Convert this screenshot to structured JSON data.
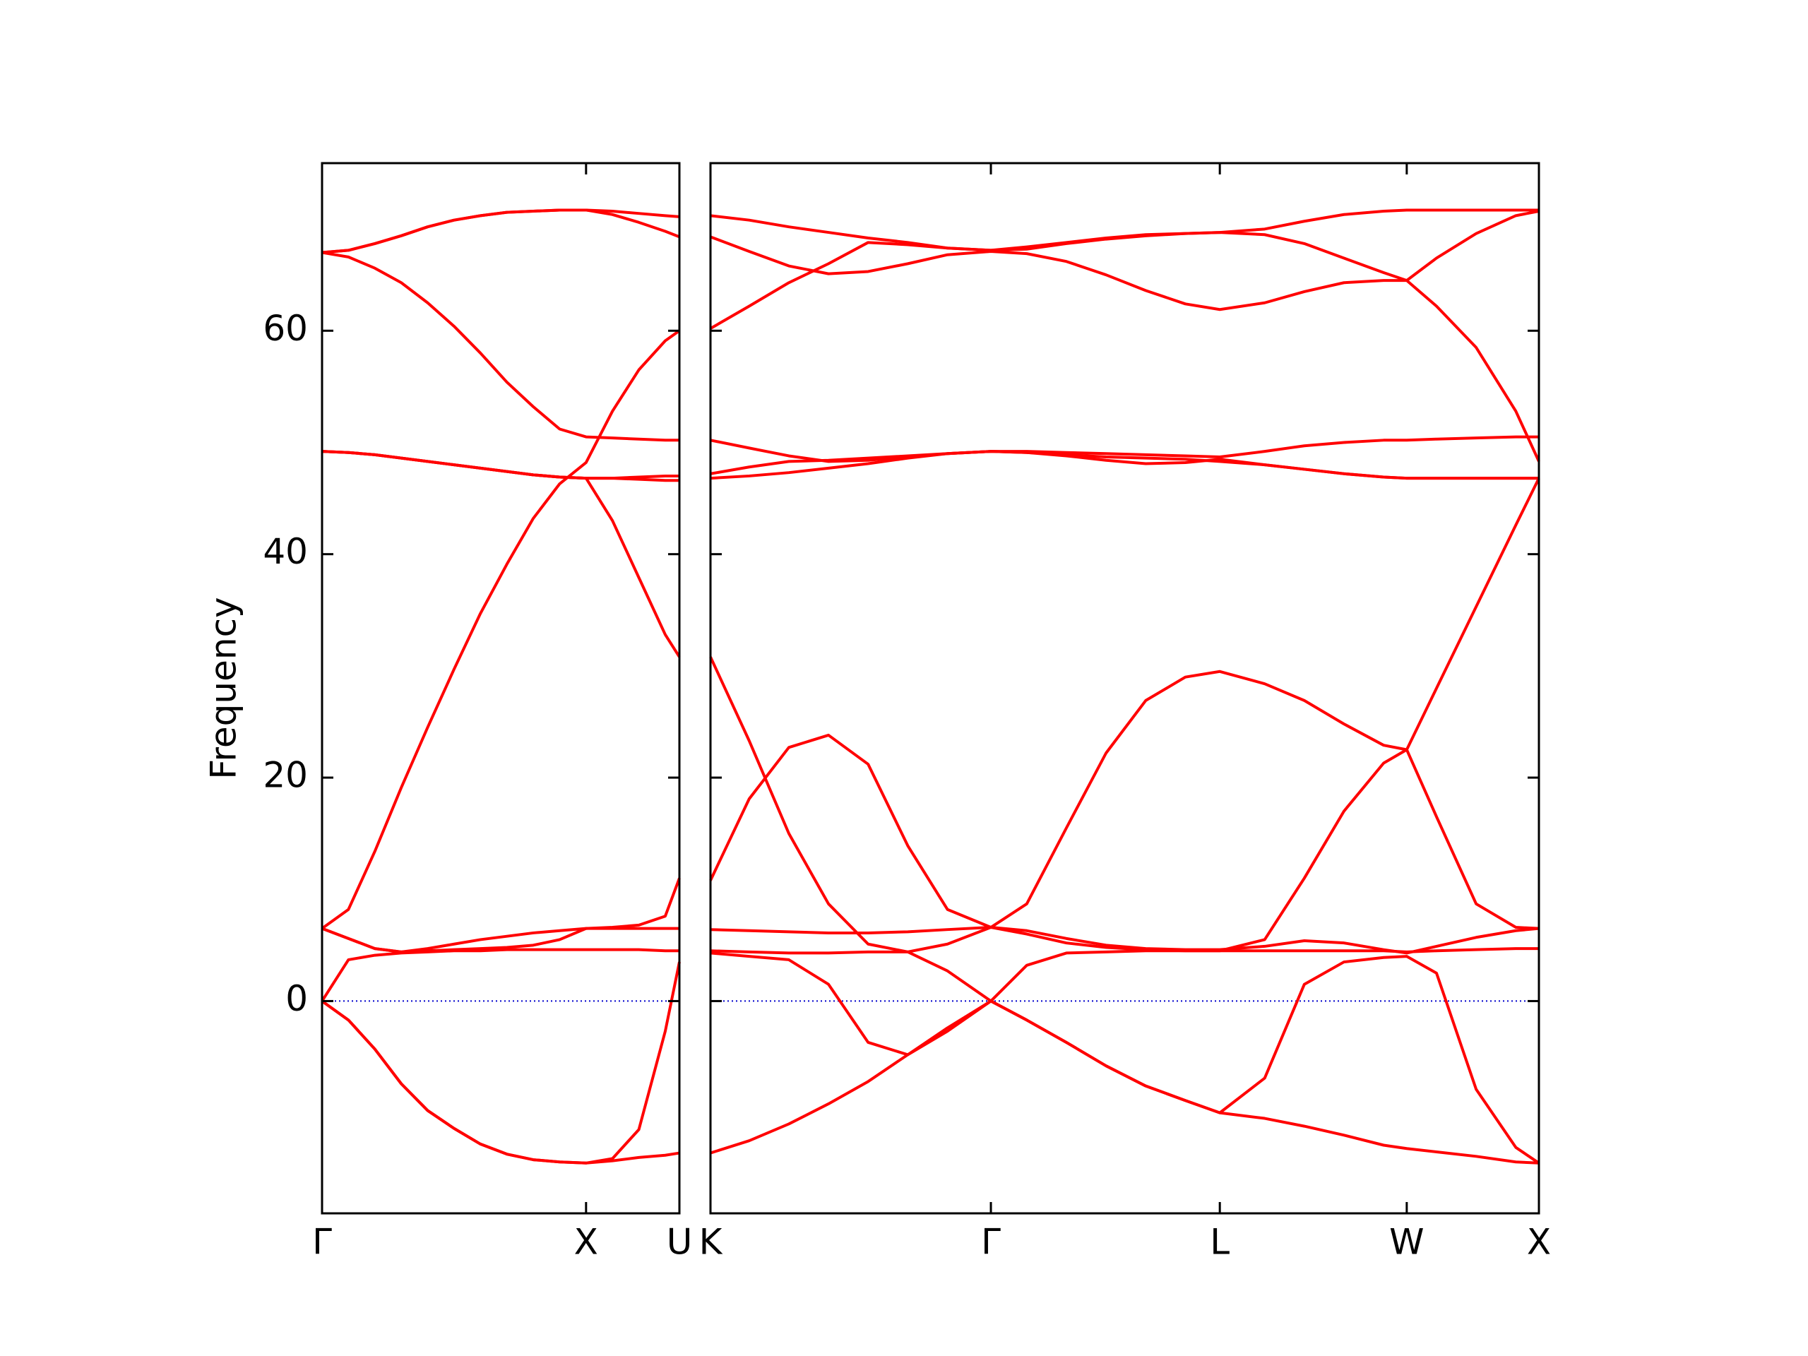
{
  "chart_data": [
    {
      "type": "line",
      "ylabel": "Frequency",
      "x": [
        0,
        0.1,
        0.2,
        0.3,
        0.4,
        0.5,
        0.6,
        0.7,
        0.8,
        0.9,
        1.0,
        1.1,
        1.2,
        1.3,
        1.3536
      ],
      "xlim": [
        0,
        1.3536
      ],
      "xticks": [
        {
          "value": 0,
          "label": "Γ"
        },
        {
          "value": 1.0,
          "label": "X"
        },
        {
          "value": 1.3536,
          "label": "U"
        }
      ],
      "ylim": [
        -19,
        75
      ],
      "yticks": [
        0,
        20,
        40,
        60
      ],
      "show_ytick_labels": true,
      "hline": 0,
      "hline_color": "#0000cc",
      "series": [
        {
          "color": "#ff0000",
          "values": [
            0,
            -1.7,
            -4.3,
            -7.4,
            -9.8,
            -11.4,
            -12.8,
            -13.7,
            -14.2,
            -14.4,
            -14.5,
            -14.3,
            -14.0,
            -13.8,
            -13.6
          ]
        },
        {
          "color": "#ff0000",
          "values": [
            0,
            -1.7,
            -4.3,
            -7.4,
            -9.8,
            -11.4,
            -12.8,
            -13.7,
            -14.2,
            -14.4,
            -14.5,
            -14.1,
            -11.5,
            -2.7,
            3.5
          ]
        },
        {
          "color": "#ff0000",
          "values": [
            0,
            3.7,
            4.1,
            4.3,
            4.4,
            4.5,
            4.5,
            4.6,
            4.6,
            4.6,
            4.6,
            4.6,
            4.6,
            4.5,
            4.5
          ]
        },
        {
          "color": "#ff0000",
          "values": [
            6.5,
            5.6,
            4.7,
            4.4,
            4.7,
            5.1,
            5.5,
            5.8,
            6.1,
            6.3,
            6.5,
            6.5,
            6.5,
            6.5,
            6.5
          ]
        },
        {
          "color": "#ff0000",
          "values": [
            6.5,
            5.6,
            4.7,
            4.4,
            4.5,
            4.6,
            4.7,
            4.8,
            5.0,
            5.5,
            6.5,
            6.6,
            6.8,
            7.6,
            11
          ]
        },
        {
          "color": "#ff0000",
          "values": [
            6.5,
            8.2,
            13.4,
            19.1,
            24.5,
            29.7,
            34.7,
            39.1,
            43.2,
            46.3,
            48.2,
            52.8,
            56.5,
            59.1,
            60.0
          ]
        },
        {
          "color": "#ff0000",
          "values": [
            49.2,
            49.1,
            48.9,
            48.6,
            48.3,
            48.0,
            47.7,
            47.4,
            47.1,
            46.9,
            46.8,
            43.0,
            37.9,
            32.8,
            30.8
          ]
        },
        {
          "color": "#ff0000",
          "values": [
            49.2,
            49.1,
            48.9,
            48.6,
            48.3,
            48.0,
            47.7,
            47.4,
            47.1,
            46.9,
            46.8,
            46.8,
            46.9,
            47.0,
            47.0
          ]
        },
        {
          "color": "#ff0000",
          "values": [
            49.2,
            49.1,
            48.9,
            48.6,
            48.3,
            48.0,
            47.7,
            47.4,
            47.1,
            46.9,
            46.8,
            46.8,
            46.7,
            46.6,
            46.6
          ]
        },
        {
          "color": "#ff0000",
          "values": [
            67.0,
            66.6,
            65.6,
            64.3,
            62.5,
            60.4,
            58.0,
            55.4,
            53.2,
            51.2,
            50.5,
            50.4,
            50.3,
            50.2,
            50.2
          ]
        },
        {
          "color": "#ff0000",
          "values": [
            67.0,
            67.2,
            67.8,
            68.5,
            69.3,
            69.9,
            70.3,
            70.6,
            70.7,
            70.8,
            70.8,
            70.7,
            70.5,
            70.3,
            70.2
          ]
        },
        {
          "color": "#ff0000",
          "values": [
            67.0,
            67.2,
            67.8,
            68.5,
            69.3,
            69.9,
            70.3,
            70.6,
            70.7,
            70.8,
            70.8,
            70.4,
            69.7,
            68.9,
            68.4
          ]
        }
      ]
    },
    {
      "type": "line",
      "x": [
        1.3536,
        1.5,
        1.65,
        1.8,
        1.95,
        2.1,
        2.25,
        2.4143,
        2.55,
        2.7,
        2.85,
        3.0,
        3.15,
        3.2803,
        3.45,
        3.6,
        3.75,
        3.9,
        3.9874,
        4.1,
        4.25,
        4.4,
        4.4874
      ],
      "xlim": [
        1.3536,
        4.4874
      ],
      "xticks": [
        {
          "value": 1.3536,
          "label": "K"
        },
        {
          "value": 2.4143,
          "label": "Γ"
        },
        {
          "value": 3.2803,
          "label": "L"
        },
        {
          "value": 3.9874,
          "label": "W"
        },
        {
          "value": 4.4874,
          "label": "X"
        }
      ],
      "ylim": [
        -19,
        75
      ],
      "yticks": [
        0,
        20,
        40,
        60
      ],
      "show_ytick_labels": false,
      "hline": 0,
      "hline_color": "#0000cc",
      "series": [
        {
          "color": "#ff0000",
          "values": [
            -13.6,
            -12.5,
            -11.0,
            -9.2,
            -7.2,
            -4.8,
            -2.4,
            0,
            -1.7,
            -3.7,
            -5.8,
            -7.6,
            -8.9,
            -10.0,
            -10.5,
            -11.2,
            -12.0,
            -12.9,
            -13.2,
            -13.5,
            -13.9,
            -14.4,
            -14.5
          ]
        },
        {
          "color": "#ff0000",
          "values": [
            4.3,
            4.0,
            3.7,
            1.5,
            -3.7,
            -4.8,
            -2.7,
            0,
            -1.7,
            -3.7,
            -5.8,
            -7.6,
            -8.9,
            -10.0,
            -6.9,
            1.5,
            3.5,
            3.9,
            4.0,
            2.5,
            -7.9,
            -13.1,
            -14.5
          ]
        },
        {
          "color": "#ff0000",
          "values": [
            4.5,
            4.4,
            4.3,
            4.3,
            4.4,
            4.4,
            2.7,
            0,
            3.2,
            4.3,
            4.4,
            4.5,
            4.5,
            4.5,
            4.5,
            4.5,
            4.5,
            4.5,
            4.4,
            4.5,
            4.6,
            4.7,
            4.7
          ]
        },
        {
          "color": "#ff0000",
          "values": [
            6.4,
            6.3,
            6.2,
            6.1,
            6.1,
            6.2,
            6.4,
            6.6,
            6.3,
            5.6,
            5.0,
            4.7,
            4.6,
            4.6,
            4.9,
            5.4,
            5.2,
            4.6,
            4.3,
            4.9,
            5.7,
            6.3,
            6.5
          ]
        },
        {
          "color": "#ff0000",
          "values": [
            30.8,
            23.3,
            15.0,
            8.7,
            5.1,
            4.4,
            5.1,
            6.6,
            6.0,
            5.2,
            4.8,
            4.6,
            4.5,
            4.5,
            5.5,
            11.0,
            17.0,
            21.3,
            22.5,
            28.0,
            35.3,
            42.6,
            46.8
          ]
        },
        {
          "color": "#ff0000",
          "values": [
            10.8,
            18.1,
            22.7,
            23.8,
            21.2,
            13.9,
            8.2,
            6.6,
            8.7,
            15.5,
            22.2,
            26.9,
            29.0,
            29.5,
            28.4,
            26.9,
            24.8,
            22.9,
            22.5,
            16.5,
            8.7,
            6.6,
            6.5
          ]
        },
        {
          "color": "#ff0000",
          "values": [
            46.8,
            47.0,
            47.3,
            47.7,
            48.1,
            48.6,
            49.0,
            49.2,
            49.1,
            48.8,
            48.4,
            48.1,
            48.2,
            48.5,
            48.0,
            47.6,
            47.2,
            46.9,
            46.8,
            46.8,
            46.8,
            46.8,
            46.8
          ]
        },
        {
          "color": "#ff0000",
          "values": [
            47.2,
            47.8,
            48.3,
            48.4,
            48.6,
            48.8,
            49.0,
            49.2,
            49.1,
            48.9,
            48.7,
            48.6,
            48.5,
            48.3,
            48.0,
            47.6,
            47.2,
            46.9,
            46.8,
            46.8,
            46.8,
            46.8,
            46.8
          ]
        },
        {
          "color": "#ff0000",
          "values": [
            50.2,
            49.5,
            48.8,
            48.3,
            48.4,
            48.7,
            49.0,
            49.2,
            49.2,
            49.1,
            49.0,
            48.9,
            48.8,
            48.7,
            49.2,
            49.7,
            50.0,
            50.2,
            50.2,
            50.3,
            50.4,
            50.5,
            50.5
          ]
        },
        {
          "color": "#ff0000",
          "values": [
            60.2,
            62.2,
            64.3,
            66.0,
            67.9,
            67.7,
            67.4,
            67.2,
            67.3,
            67.8,
            68.2,
            68.5,
            68.7,
            68.8,
            68.6,
            67.8,
            66.5,
            65.2,
            64.5,
            66.5,
            68.7,
            70.3,
            70.7
          ]
        },
        {
          "color": "#ff0000",
          "values": [
            68.4,
            67.1,
            65.8,
            65.1,
            65.3,
            66.0,
            66.8,
            67.1,
            66.9,
            66.2,
            65.0,
            63.6,
            62.4,
            61.9,
            62.5,
            63.5,
            64.3,
            64.5,
            64.5,
            62.2,
            58.5,
            52.8,
            48.3
          ]
        },
        {
          "color": "#ff0000",
          "values": [
            70.3,
            69.9,
            69.3,
            68.8,
            68.3,
            67.9,
            67.4,
            67.2,
            67.5,
            67.9,
            68.3,
            68.6,
            68.7,
            68.8,
            69.1,
            69.8,
            70.4,
            70.7,
            70.8,
            70.8,
            70.8,
            70.8,
            70.8
          ]
        }
      ]
    }
  ]
}
